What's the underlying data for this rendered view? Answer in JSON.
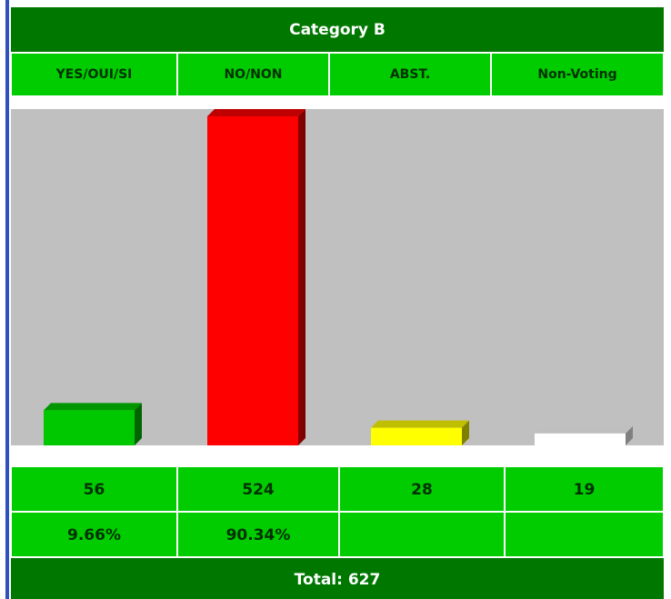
{
  "chart_data": {
    "type": "bar",
    "title": "Category B",
    "categories": [
      "YES/OUI/SI",
      "NO/NON",
      "ABST.",
      "Non-Voting"
    ],
    "values": [
      56,
      524,
      28,
      19
    ],
    "colors": [
      "#00c800",
      "#ff0000",
      "#ffff00",
      "#ffffff"
    ],
    "ylim": [
      0,
      524
    ],
    "shares": [
      9.66,
      90.34
    ],
    "share_labels": [
      "9.66%",
      "90.34%"
    ],
    "footer": "Total: 627"
  }
}
